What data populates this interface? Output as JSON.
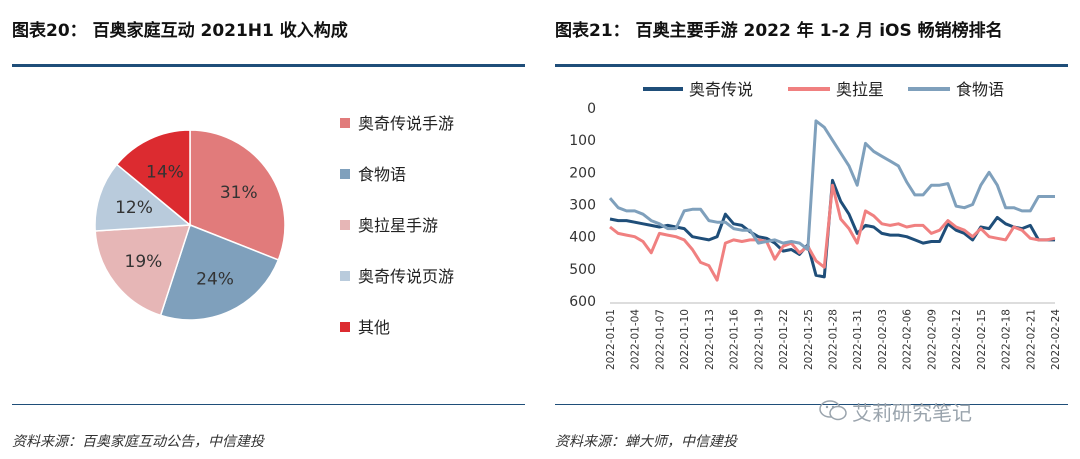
{
  "left": {
    "title": "图表20： 百奥家庭互动 2021H1 收入构成",
    "source": "资料来源：百奥家庭互动公告，中信建投"
  },
  "right": {
    "title": "图表21： 百奥主要手游 2022 年 1-2 月 iOS 畅销榜排名",
    "source": "资料来源：蝉大师，中信建投"
  },
  "watermark": "艾莉研究笔记",
  "chart_data": [
    {
      "type": "pie",
      "title": "",
      "slices": [
        {
          "label": "奥奇传说手游",
          "value": 31,
          "display": "31%",
          "color": "#e17b7b"
        },
        {
          "label": "食物语",
          "value": 24,
          "display": "24%",
          "color": "#7fa0bc"
        },
        {
          "label": "奥拉星手游",
          "value": 19,
          "display": "19%",
          "color": "#e6b6b6"
        },
        {
          "label": "奥奇传说页游",
          "value": 12,
          "display": "12%",
          "color": "#b9cbdc"
        },
        {
          "label": "其他",
          "value": 14,
          "display": "14%",
          "color": "#dc2b30"
        }
      ],
      "legend_position": "right"
    },
    {
      "type": "line",
      "title": "",
      "xlabel": "",
      "ylabel": "",
      "ylim": [
        600,
        0
      ],
      "y_reversed": true,
      "yticks": [
        0,
        100,
        200,
        300,
        400,
        500,
        600
      ],
      "x_tick_labels": [
        "2022-01-01",
        "2022-01-04",
        "2022-01-07",
        "2022-01-10",
        "2022-01-13",
        "2022-01-16",
        "2022-01-19",
        "2022-01-22",
        "2022-01-25",
        "2022-01-28",
        "2022-01-31",
        "2022-02-03",
        "2022-02-06",
        "2022-02-09",
        "2022-02-12",
        "2022-02-15",
        "2022-02-18",
        "2022-02-21",
        "2022-02-24"
      ],
      "x": [
        "2022-01-01",
        "2022-01-02",
        "2022-01-03",
        "2022-01-04",
        "2022-01-05",
        "2022-01-06",
        "2022-01-07",
        "2022-01-08",
        "2022-01-09",
        "2022-01-10",
        "2022-01-11",
        "2022-01-12",
        "2022-01-13",
        "2022-01-14",
        "2022-01-15",
        "2022-01-16",
        "2022-01-17",
        "2022-01-18",
        "2022-01-19",
        "2022-01-20",
        "2022-01-21",
        "2022-01-22",
        "2022-01-23",
        "2022-01-24",
        "2022-01-25",
        "2022-01-26",
        "2022-01-27",
        "2022-01-28",
        "2022-01-29",
        "2022-01-30",
        "2022-01-31",
        "2022-02-01",
        "2022-02-02",
        "2022-02-03",
        "2022-02-04",
        "2022-02-05",
        "2022-02-06",
        "2022-02-07",
        "2022-02-08",
        "2022-02-09",
        "2022-02-10",
        "2022-02-11",
        "2022-02-12",
        "2022-02-13",
        "2022-02-14",
        "2022-02-15",
        "2022-02-16",
        "2022-02-17",
        "2022-02-18",
        "2022-02-19",
        "2022-02-20",
        "2022-02-21",
        "2022-02-22",
        "2022-02-23",
        "2022-02-24"
      ],
      "legend_position": "top",
      "series": [
        {
          "name": "奥奇传说",
          "color": "#1f4e79",
          "values": [
            345,
            350,
            350,
            355,
            360,
            365,
            370,
            365,
            370,
            375,
            400,
            405,
            410,
            400,
            330,
            360,
            365,
            385,
            400,
            405,
            420,
            445,
            440,
            455,
            425,
            520,
            525,
            225,
            290,
            330,
            390,
            365,
            370,
            390,
            395,
            395,
            400,
            410,
            420,
            415,
            415,
            360,
            380,
            390,
            410,
            370,
            375,
            340,
            360,
            370,
            375,
            365,
            410,
            410,
            410
          ]
        },
        {
          "name": "奥拉星",
          "color": "#f08080",
          "values": [
            370,
            390,
            395,
            400,
            415,
            450,
            390,
            395,
            400,
            410,
            440,
            480,
            490,
            535,
            420,
            410,
            415,
            410,
            410,
            415,
            470,
            430,
            420,
            450,
            430,
            475,
            495,
            240,
            345,
            375,
            420,
            320,
            335,
            360,
            365,
            360,
            370,
            365,
            365,
            390,
            380,
            350,
            370,
            380,
            400,
            375,
            400,
            405,
            410,
            370,
            380,
            405,
            410,
            410,
            405
          ]
        },
        {
          "name": "食物语",
          "color": "#7fa0bc",
          "values": [
            280,
            310,
            320,
            320,
            330,
            350,
            360,
            375,
            375,
            320,
            315,
            315,
            350,
            355,
            355,
            375,
            380,
            380,
            420,
            415,
            410,
            420,
            415,
            420,
            440,
            40,
            60,
            100,
            140,
            180,
            240,
            110,
            135,
            150,
            165,
            180,
            230,
            270,
            270,
            240,
            240,
            235,
            305,
            310,
            300,
            240,
            200,
            240,
            310,
            310,
            320,
            320,
            275,
            275,
            275
          ]
        }
      ]
    }
  ]
}
